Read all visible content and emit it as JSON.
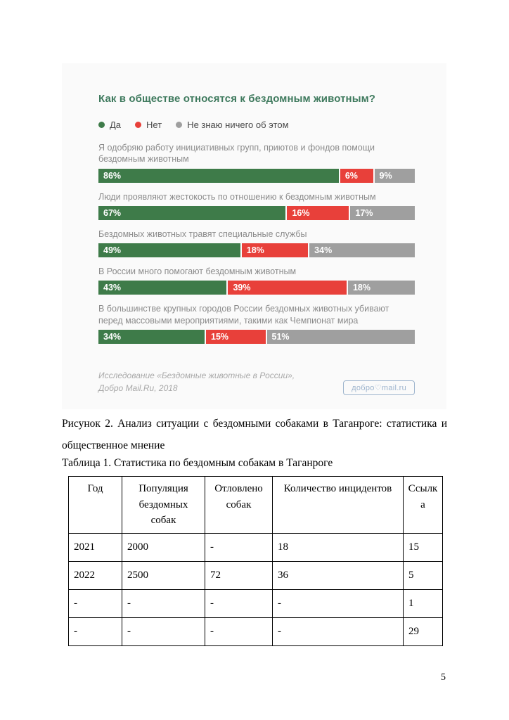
{
  "figure": {
    "title": "Как в обществе относятся к бездомным животным?",
    "colors": {
      "yes": "#3e7b49",
      "no": "#e8403a",
      "unknown": "#9f9f9f",
      "title": "#3f7a5e",
      "logo": "#9db4cd"
    },
    "legend": [
      {
        "label": "Да"
      },
      {
        "label": "Нет"
      },
      {
        "label": "Не знаю ничего об этом"
      }
    ],
    "rows": [
      {
        "label": "Я одобряю работу инициативных групп, приютов и фондов помощи бездомным животным",
        "yes": "86%",
        "no": "6%",
        "unknown": "9%"
      },
      {
        "label": "Люди проявляют жестокость по отношению к бездомным животным",
        "yes": "67%",
        "no": "16%",
        "unknown": "17%"
      },
      {
        "label": "Бездомных животных травят специальные службы",
        "yes": "49%",
        "no": "18%",
        "unknown": "34%"
      },
      {
        "label": "В России много помогают бездомным животным",
        "yes": "43%",
        "no": "39%",
        "unknown": "18%"
      },
      {
        "label": "В большинстве крупных городов России бездомных животных убивают перед массовыми мероприятиями, такими как Чемпионат мира",
        "yes": "34%",
        "no": "15%",
        "unknown": "51%"
      }
    ],
    "source_line1": "Исследование «Бездомные животные в России»,",
    "source_line2": "Добро Mail.Ru, 2018",
    "logo_text": "добро♡mail.ru"
  },
  "chart_data": {
    "type": "bar",
    "subtype": "horizontal-stacked",
    "title": "Как в обществе относятся к бездомным животным?",
    "unit": "%",
    "legend_position": "top",
    "categories": [
      "Я одобряю работу инициативных групп, приютов и фондов помощи бездомным животным",
      "Люди проявляют жестокость по отношению к бездомным животным",
      "Бездомных животных травят специальные службы",
      "В России много помогают бездомным животным",
      "В большинстве крупных городов России бездомных животных убивают перед массовыми мероприятиями, такими как Чемпионат мира"
    ],
    "series": [
      {
        "name": "Да",
        "color": "#3e7b49",
        "values": [
          86,
          67,
          49,
          43,
          34
        ]
      },
      {
        "name": "Нет",
        "color": "#e8403a",
        "values": [
          6,
          16,
          18,
          39,
          15
        ]
      },
      {
        "name": "Не знаю ничего об этом",
        "color": "#9f9f9f",
        "values": [
          9,
          17,
          34,
          18,
          51
        ]
      }
    ],
    "source": "Исследование «Бездомные животные в России», Добро Mail.Ru, 2018"
  },
  "caption_text": "Рисунок 2. Анализ ситуации с бездомными собаками в Таганроге: статистика и общественное мнение",
  "table": {
    "caption": "Таблица 1. Статистика по бездомным собакам в Таганроге",
    "headers": [
      "Год",
      "Популяция бездомных собак",
      "Отловлено собак",
      "Количество инцидентов",
      "Ссылка"
    ],
    "rows": [
      [
        "2021",
        "2000",
        "-",
        "18",
        "15"
      ],
      [
        "2022",
        "2500",
        "72",
        "36",
        "5"
      ],
      [
        "-",
        "-",
        "-",
        "-",
        "1"
      ],
      [
        "-",
        "-",
        "-",
        "-",
        "29"
      ]
    ]
  },
  "page_number": "5"
}
